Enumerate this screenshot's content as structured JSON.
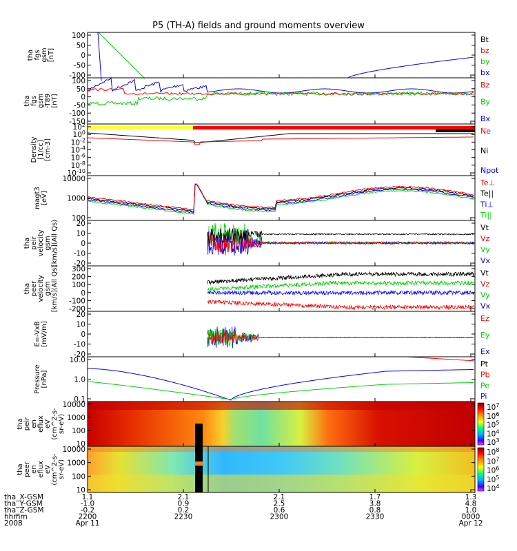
{
  "title": "P5 (TH-A) fields and ground moments overview",
  "colors": {
    "black": "#000000",
    "red": "#ff0000",
    "green": "#00d000",
    "blue": "#0000ff",
    "yellow": "#ffff33"
  },
  "chart_data": [
    {
      "type": "line",
      "name": "fgs",
      "ylabel": [
        "tha",
        "fgs",
        "gsm",
        "[nT]"
      ],
      "yticks": [
        "100",
        "50",
        "0",
        "-50",
        "-100"
      ],
      "ylim": [
        -100,
        100
      ],
      "legend": [
        {
          "text": "Bt",
          "color": "black"
        },
        {
          "text": "bz",
          "color": "red"
        },
        {
          "text": "by",
          "color": "green"
        },
        {
          "text": "bx",
          "color": "blue"
        }
      ]
    },
    {
      "type": "line",
      "name": "fgs-t89",
      "ylabel": [
        "tha",
        "fgs",
        "gsm",
        "-T89",
        "[nT]"
      ],
      "yticks": [
        "100",
        "50",
        "0",
        "-50",
        "-100",
        "-150"
      ],
      "ylim": [
        -170,
        110
      ],
      "legend": [
        {
          "text": "Bz",
          "color": "red"
        },
        {
          "text": "By",
          "color": "green"
        },
        {
          "text": "Bx",
          "color": "blue"
        }
      ]
    },
    {
      "type": "line",
      "name": "density",
      "ylabel": [
        "Density",
        "[1/cc]",
        "[cm-3]"
      ],
      "yticks": [
        "10^2",
        "10^0",
        "10^-2",
        "10^-4",
        "10^-6",
        "10^-8",
        "10^-10"
      ],
      "scale": "log",
      "ylim": [
        1e-10,
        1000.0
      ],
      "legend": [
        {
          "text": "Ne",
          "color": "red"
        },
        {
          "text": "Ni",
          "color": "black"
        },
        {
          "text": "Npot",
          "color": "blue"
        }
      ]
    },
    {
      "type": "line",
      "name": "temperature",
      "ylabel": [
        "magt3",
        "[eV]"
      ],
      "yticks": [
        "10000",
        "1000",
        "100"
      ],
      "scale": "log",
      "ylim": [
        30,
        10000
      ],
      "legend": [
        {
          "text": "Te⊥",
          "color": "red"
        },
        {
          "text": "Te||",
          "color": "black"
        },
        {
          "text": "Ti⊥",
          "color": "blue"
        },
        {
          "text": "Ti||",
          "color": "green"
        }
      ]
    },
    {
      "type": "line",
      "name": "peir-velocity",
      "ylabel": [
        "tha",
        "peir",
        "velocity",
        "gsm",
        "[km/s](All Qs)"
      ],
      "yticks": [
        "20",
        "10",
        "0",
        "-10",
        "-20"
      ],
      "ylim": [
        -28,
        20
      ],
      "legend": [
        {
          "text": "Vt",
          "color": "black"
        },
        {
          "text": "Vz",
          "color": "red"
        },
        {
          "text": "Vy",
          "color": "green"
        },
        {
          "text": "Vx",
          "color": "blue"
        }
      ]
    },
    {
      "type": "line",
      "name": "peer-velocity",
      "ylabel": [
        "tha",
        "peer",
        "velocity",
        "gsm",
        "[km/s](All Qs)"
      ],
      "yticks": [
        "300",
        "200",
        "100",
        "0",
        "-100",
        "-200"
      ],
      "ylim": [
        -260,
        320
      ],
      "legend": [
        {
          "text": "Vt",
          "color": "black"
        },
        {
          "text": "Vz",
          "color": "red"
        },
        {
          "text": "Vy",
          "color": "green"
        },
        {
          "text": "Vx",
          "color": "blue"
        }
      ]
    },
    {
      "type": "line",
      "name": "efield",
      "ylabel": [
        "E=-VxB",
        "[mV/m]"
      ],
      "yticks": [
        "20",
        "10",
        "0",
        "-10",
        "-20"
      ],
      "ylim": [
        -25,
        25
      ],
      "legend": [
        {
          "text": "Ez",
          "color": "red"
        },
        {
          "text": "Ey",
          "color": "green"
        },
        {
          "text": "Ex",
          "color": "blue"
        }
      ]
    },
    {
      "type": "line",
      "name": "pressure",
      "ylabel": [
        "Pressure",
        "[nPa]"
      ],
      "yticks": [
        "10.0",
        "1.0",
        "0.1"
      ],
      "scale": "log",
      "ylim": [
        0.02,
        30
      ],
      "legend": [
        {
          "text": "Pt",
          "color": "black"
        },
        {
          "text": "Pb",
          "color": "red"
        },
        {
          "text": "Pe",
          "color": "green"
        },
        {
          "text": "Pi",
          "color": "blue"
        }
      ]
    },
    {
      "type": "heatmap",
      "name": "peir-eflux",
      "ylabel": [
        "tha",
        "peir",
        "en",
        "eflux",
        "eV",
        "(cm^2-s-",
        "sr-eV)"
      ],
      "yticks": [
        "10000",
        "1000",
        "100",
        "10"
      ],
      "scale": "log",
      "colorbar": [
        "10^7",
        "10^6",
        "10^5",
        "10^4",
        "10^3"
      ]
    },
    {
      "type": "heatmap",
      "name": "peer-eflux",
      "ylabel": [
        "tha",
        "peer",
        "en",
        "eflux",
        "eV",
        "(cm^2-s-",
        "sr-eV)"
      ],
      "yticks": [
        "10000",
        "1000",
        "100",
        "10"
      ],
      "scale": "log",
      "colorbar": [
        "10^8",
        "10^7",
        "10^6",
        "10^5",
        "10^4"
      ]
    }
  ],
  "x_axis": {
    "rows": [
      {
        "label": "tha_X-GSM",
        "values": [
          "1.1",
          "2.1",
          "2.1",
          "1.7",
          "1.3"
        ]
      },
      {
        "label": "tha_Y-GSM",
        "values": [
          "-1.0",
          "0.9",
          "2.5",
          "3.8",
          "4.8"
        ]
      },
      {
        "label": "tha_Z-GSM",
        "values": [
          "-0.2",
          "0.2",
          "0.6",
          "0.8",
          "1.0"
        ]
      },
      {
        "label": "hhmm",
        "values": [
          "2200",
          "2230",
          "2300",
          "2330",
          "0000"
        ]
      },
      {
        "label": "2008",
        "values": [
          "Apr 11",
          "",
          "",
          "",
          "Apr 12"
        ]
      }
    ]
  }
}
